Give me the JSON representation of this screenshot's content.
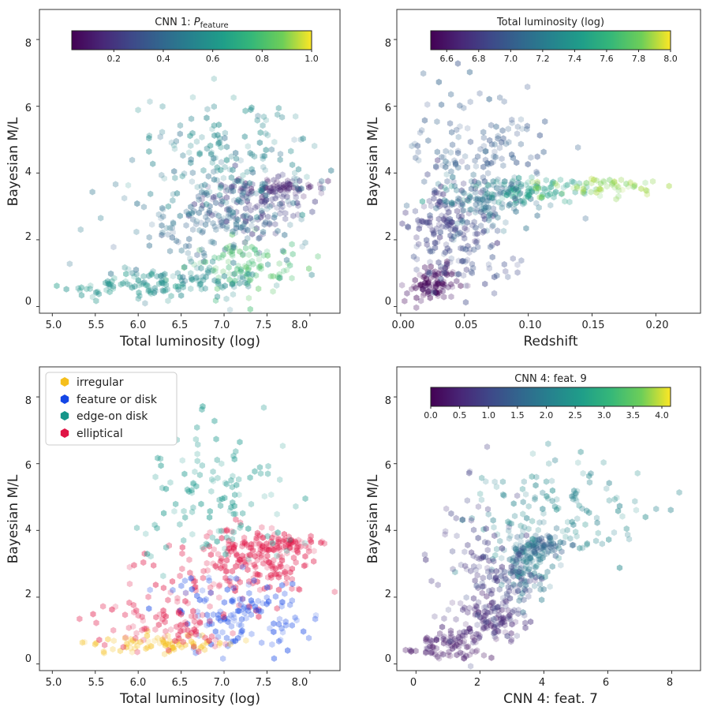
{
  "figure": {
    "layout": "2x2 hexbin scatter panels"
  },
  "chart_data": [
    {
      "type": "scatter",
      "panel": "top-left",
      "xlabel": "Total luminosity (log)",
      "ylabel": "Bayesian M/L",
      "xlim": [
        4.85,
        8.35
      ],
      "ylim": [
        -0.2,
        8.9
      ],
      "xticks": [
        "5.0",
        "5.5",
        "6.0",
        "6.5",
        "7.0",
        "7.5",
        "8.0"
      ],
      "xtick_values": [
        5.0,
        5.5,
        6.0,
        6.5,
        7.0,
        7.5,
        8.0
      ],
      "yticks": [
        "0",
        "2",
        "4",
        "6",
        "8"
      ],
      "ytick_values": [
        0,
        2,
        4,
        6,
        8
      ],
      "colorbar": {
        "title": "CNN 1: ",
        "title_math": "P",
        "title_sub": "feature",
        "cmap": "viridis",
        "range": [
          0.03,
          1.0
        ],
        "ticks": [
          "0.2",
          "0.4",
          "0.6",
          "0.8",
          "1.0"
        ],
        "tick_values": [
          0.2,
          0.4,
          0.6,
          0.8,
          1.0
        ]
      },
      "clusters": [
        {
          "x": 7.35,
          "y": 3.1,
          "sx": 0.35,
          "sy": 0.45,
          "n": 110,
          "c": 0.22
        },
        {
          "x": 7.7,
          "y": 3.55,
          "sx": 0.25,
          "sy": 0.12,
          "n": 50,
          "c": 0.12
        },
        {
          "x": 6.9,
          "y": 2.4,
          "sx": 0.35,
          "sy": 0.4,
          "n": 70,
          "c": 0.38
        },
        {
          "x": 7.25,
          "y": 1.2,
          "sx": 0.35,
          "sy": 0.45,
          "n": 90,
          "c": 0.8
        },
        {
          "x": 6.6,
          "y": 0.75,
          "sx": 0.45,
          "sy": 0.25,
          "n": 90,
          "c": 0.55
        },
        {
          "x": 5.9,
          "y": 0.6,
          "sx": 0.45,
          "sy": 0.2,
          "n": 60,
          "c": 0.6
        },
        {
          "x": 7.0,
          "y": 4.7,
          "sx": 0.45,
          "sy": 0.9,
          "n": 120,
          "c": 0.55
        },
        {
          "x": 6.9,
          "y": 3.2,
          "sx": 0.6,
          "sy": 1.1,
          "n": 140,
          "c": 0.45
        }
      ]
    },
    {
      "type": "scatter",
      "panel": "top-right",
      "xlabel": "Redshift",
      "ylabel": "Bayesian M/L",
      "xlim": [
        -0.003,
        0.235
      ],
      "ylim": [
        -0.2,
        8.9
      ],
      "xticks": [
        "0.00",
        "0.05",
        "0.10",
        "0.15",
        "0.20"
      ],
      "xtick_values": [
        0.0,
        0.05,
        0.1,
        0.15,
        0.2
      ],
      "yticks": [
        "0",
        "2",
        "4",
        "6",
        "8"
      ],
      "ytick_values": [
        0,
        2,
        4,
        6,
        8
      ],
      "colorbar": {
        "title": "Total luminosity (log)",
        "cmap": "viridis",
        "range": [
          6.5,
          8.0
        ],
        "ticks": [
          "6.6",
          "6.8",
          "7.0",
          "7.2",
          "7.4",
          "7.6",
          "7.8",
          "8.0"
        ],
        "tick_values": [
          6.6,
          6.8,
          7.0,
          7.2,
          7.4,
          7.6,
          7.8,
          8.0
        ]
      },
      "clusters": [
        {
          "x": 0.025,
          "y": 0.7,
          "sx": 0.01,
          "sy": 0.25,
          "n": 90,
          "c": 6.55
        },
        {
          "x": 0.035,
          "y": 2.6,
          "sx": 0.015,
          "sy": 0.6,
          "n": 110,
          "c": 6.8
        },
        {
          "x": 0.065,
          "y": 3.2,
          "sx": 0.02,
          "sy": 0.4,
          "n": 110,
          "c": 7.15
        },
        {
          "x": 0.1,
          "y": 3.45,
          "sx": 0.025,
          "sy": 0.2,
          "n": 90,
          "c": 7.45
        },
        {
          "x": 0.16,
          "y": 3.6,
          "sx": 0.03,
          "sy": 0.15,
          "n": 60,
          "c": 7.85
        },
        {
          "x": 0.06,
          "y": 4.8,
          "sx": 0.03,
          "sy": 1.0,
          "n": 130,
          "c": 7.0
        },
        {
          "x": 0.05,
          "y": 1.6,
          "sx": 0.025,
          "sy": 0.6,
          "n": 90,
          "c": 6.9
        }
      ]
    },
    {
      "type": "scatter",
      "panel": "bottom-left",
      "xlabel": "Total luminosity (log)",
      "ylabel": "Bayesian M/L",
      "xlim": [
        4.85,
        8.35
      ],
      "ylim": [
        -0.2,
        8.9
      ],
      "xticks": [
        "5.0",
        "5.5",
        "6.0",
        "6.5",
        "7.0",
        "7.5",
        "8.0"
      ],
      "xtick_values": [
        5.0,
        5.5,
        6.0,
        6.5,
        7.0,
        7.5,
        8.0
      ],
      "yticks": [
        "0",
        "2",
        "4",
        "6",
        "8"
      ],
      "ytick_values": [
        0,
        2,
        4,
        6,
        8
      ],
      "legend": {
        "position": "top-left",
        "entries": [
          {
            "label": "irregular",
            "color": "#f5bf1c"
          },
          {
            "label": "feature or disk",
            "color": "#1446e6"
          },
          {
            "label": "edge-on disk",
            "color": "#16968a"
          },
          {
            "label": "elliptical",
            "color": "#e01445"
          }
        ]
      },
      "clusters": [
        {
          "x": 7.4,
          "y": 3.2,
          "sx": 0.35,
          "sy": 0.45,
          "n": 140,
          "k": 3
        },
        {
          "x": 7.7,
          "y": 3.55,
          "sx": 0.25,
          "sy": 0.15,
          "n": 50,
          "k": 3
        },
        {
          "x": 6.8,
          "y": 2.5,
          "sx": 0.45,
          "sy": 0.6,
          "n": 80,
          "k": 3
        },
        {
          "x": 7.2,
          "y": 1.5,
          "sx": 0.35,
          "sy": 0.6,
          "n": 130,
          "k": 1
        },
        {
          "x": 6.3,
          "y": 0.6,
          "sx": 0.4,
          "sy": 0.15,
          "n": 70,
          "k": 0
        },
        {
          "x": 6.9,
          "y": 5.0,
          "sx": 0.45,
          "sy": 1.0,
          "n": 120,
          "k": 2
        },
        {
          "x": 6.3,
          "y": 1.1,
          "sx": 0.5,
          "sy": 0.4,
          "n": 80,
          "k": 3
        }
      ]
    },
    {
      "type": "scatter",
      "panel": "bottom-right",
      "xlabel": "CNN 4: feat. 7",
      "ylabel": "Bayesian M/L",
      "xlim": [
        -0.6,
        8.9
      ],
      "ylim": [
        -0.2,
        8.9
      ],
      "xticks": [
        "0",
        "2",
        "4",
        "6",
        "8"
      ],
      "xtick_values": [
        0,
        2,
        4,
        6,
        8
      ],
      "yticks": [
        "0",
        "2",
        "4",
        "6",
        "8"
      ],
      "ytick_values": [
        0,
        2,
        4,
        6,
        8
      ],
      "colorbar": {
        "title": "CNN 4: feat. 9",
        "cmap": "viridis",
        "range": [
          0.0,
          4.15
        ],
        "ticks": [
          "0.0",
          "0.5",
          "1.0",
          "1.5",
          "2.0",
          "2.5",
          "3.0",
          "3.5",
          "4.0"
        ],
        "tick_values": [
          0.0,
          0.5,
          1.0,
          1.5,
          2.0,
          2.5,
          3.0,
          3.5,
          4.0
        ]
      },
      "clusters": [
        {
          "x": 1.0,
          "y": 0.6,
          "sx": 0.5,
          "sy": 0.2,
          "n": 80,
          "c": 0.3
        },
        {
          "x": 2.3,
          "y": 1.3,
          "sx": 0.5,
          "sy": 0.35,
          "n": 90,
          "c": 0.5
        },
        {
          "x": 3.4,
          "y": 3.0,
          "sx": 0.4,
          "sy": 0.5,
          "n": 110,
          "c": 1.9
        },
        {
          "x": 4.0,
          "y": 3.55,
          "sx": 0.4,
          "sy": 0.15,
          "n": 50,
          "c": 1.5
        },
        {
          "x": 2.8,
          "y": 2.2,
          "sx": 0.6,
          "sy": 0.6,
          "n": 70,
          "c": 1.0
        },
        {
          "x": 4.5,
          "y": 4.6,
          "sx": 1.4,
          "sy": 0.9,
          "n": 130,
          "c": 2.2
        },
        {
          "x": 2.0,
          "y": 3.0,
          "sx": 0.8,
          "sy": 1.2,
          "n": 80,
          "c": 0.8
        }
      ]
    }
  ]
}
